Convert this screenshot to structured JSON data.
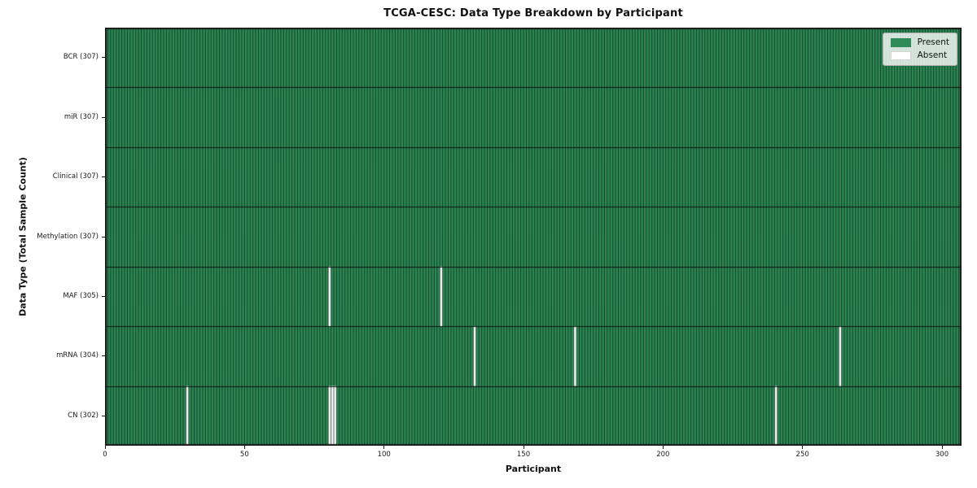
{
  "chart_data": {
    "type": "heatmap",
    "title": "TCGA-CESC: Data Type Breakdown by Participant",
    "xlabel": "Participant",
    "ylabel": "Data Type (Total Sample Count)",
    "x_range": [
      0,
      307
    ],
    "x_ticks": [
      0,
      50,
      100,
      150,
      200,
      250,
      300
    ],
    "n_participants": 307,
    "grid": false,
    "legend_position": "upper right",
    "rows": [
      {
        "label": "BCR (307)",
        "data_type": "BCR",
        "present_count": 307,
        "absent_participants": []
      },
      {
        "label": "miR (307)",
        "data_type": "miR",
        "present_count": 307,
        "absent_participants": []
      },
      {
        "label": "Clinical (307)",
        "data_type": "Clinical",
        "present_count": 307,
        "absent_participants": []
      },
      {
        "label": "Methylation (307)",
        "data_type": "Methylation",
        "present_count": 307,
        "absent_participants": []
      },
      {
        "label": "MAF (305)",
        "data_type": "MAF",
        "present_count": 305,
        "absent_participants": [
          80,
          120
        ]
      },
      {
        "label": "mRNA (304)",
        "data_type": "mRNA",
        "present_count": 304,
        "absent_participants": [
          132,
          168,
          263
        ]
      },
      {
        "label": "CN (302)",
        "data_type": "CN",
        "present_count": 302,
        "absent_participants": [
          29,
          80,
          81,
          82,
          240
        ]
      }
    ],
    "legend_items": [
      {
        "label": "Present",
        "color": "#2e8b57"
      },
      {
        "label": "Absent",
        "color": "#ffffff"
      }
    ],
    "colors": {
      "present": "#2e8b57",
      "absent": "#ffffff",
      "cell_edge": "rgba(8,28,18,0.72)",
      "row_divider": "rgba(0,0,0,0.82)",
      "spine": "#1a1a1a",
      "background": "#ffffff"
    }
  }
}
